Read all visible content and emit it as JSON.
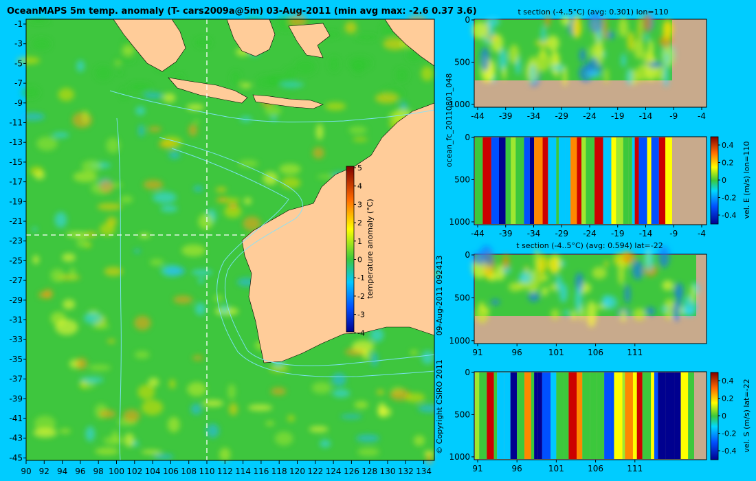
{
  "map": {
    "title": "OceanMAPS 5m temp. anomaly (T- cars2009a@5m) 03-Aug-2011 (min avg max: -2.6 0.37 3.6)",
    "lat_labels": [
      "-1",
      "-3",
      "-5",
      "-7",
      "-9",
      "-11",
      "-13",
      "-15",
      "-17",
      "-19",
      "-21",
      "-23",
      "-25",
      "-27",
      "-29",
      "-31",
      "-33",
      "-35",
      "-37",
      "-39",
      "-41",
      "-43",
      "-45"
    ],
    "lon_labels": [
      "90",
      "92",
      "94",
      "96",
      "98",
      "100",
      "102",
      "104",
      "106",
      "108",
      "110",
      "112",
      "114",
      "116",
      "118",
      "120",
      "122",
      "124",
      "126",
      "128",
      "130",
      "132",
      "134"
    ],
    "colorbar_ticks": [
      "5",
      "4",
      "3",
      "2",
      "1",
      "0",
      "-1",
      "-2",
      "-3",
      "-4"
    ],
    "colorbar_label": "temperature anomaly (°C)",
    "colors": {
      "ocean": "#3cc83c",
      "land": "#ffcc99",
      "background": "#00ccff",
      "crosshair": "#ffffff",
      "bathymetry": "#7fe0ff"
    }
  },
  "sections": {
    "t_lon": {
      "title": "t section (-4..5°C) (avg: 0.301) lon=110",
      "x_ticks": [
        "-44",
        "-39",
        "-34",
        "-29",
        "-24",
        "-19",
        "-14",
        "-9",
        "-4"
      ],
      "y_ticks": [
        "0",
        "500",
        "1000"
      ]
    },
    "u_lon": {
      "x_ticks": [
        "-44",
        "-39",
        "-34",
        "-29",
        "-24",
        "-19",
        "-14",
        "-9",
        "-4"
      ],
      "y_ticks": [
        "0",
        "500",
        "1000"
      ],
      "cb_ticks": [
        "0.4",
        "0.2",
        "0",
        "-0.2",
        "-0.4"
      ],
      "cb_label": "vel. E (m/s) lon=110"
    },
    "t_lat": {
      "title": "t section (-4..5°C) (avg: 0.594) lat=-22",
      "x_ticks": [
        "91",
        "96",
        "101",
        "106",
        "111"
      ],
      "y_ticks": [
        "0",
        "500",
        "1000"
      ]
    },
    "v_lat": {
      "x_ticks": [
        "91",
        "96",
        "101",
        "106",
        "111"
      ],
      "y_ticks": [
        "0",
        "500",
        "1000"
      ],
      "cb_ticks": [
        "0.4",
        "0.2",
        "0",
        "-0.2",
        "-0.4"
      ],
      "cb_label": "vel. S (m/s) lat=-22"
    }
  },
  "side_labels": {
    "run_id": "ocean_fc_20110801_048",
    "timestamp": "09-Aug-2011 092413",
    "copyright": "© Copyright CSIRO 2011"
  }
}
